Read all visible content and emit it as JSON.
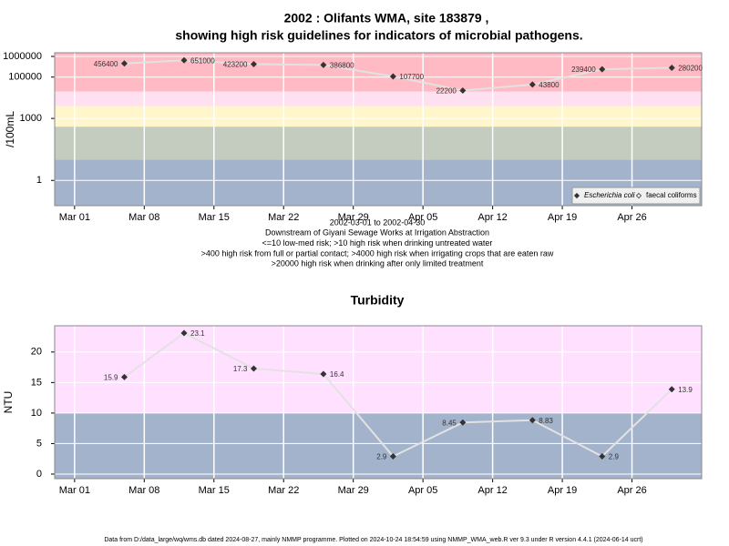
{
  "chart_data": [
    {
      "type": "line",
      "title": [
        "2002 : Olifants WMA, site 183879 ,",
        "showing high risk guidelines for indicators of microbial pathogens."
      ],
      "ylabel": "/100mL",
      "log_scale": true,
      "ylim": [
        0.06,
        1500000
      ],
      "yticks": [
        1,
        1000,
        100000,
        1000000
      ],
      "xlim": [
        "2002-02-27",
        "2002-05-03"
      ],
      "xticks": [
        {
          "value": "2002-03-01",
          "label": "Mar 01"
        },
        {
          "value": "2002-03-08",
          "label": "Mar 08"
        },
        {
          "value": "2002-03-15",
          "label": "Mar 15"
        },
        {
          "value": "2002-03-22",
          "label": "Mar 22"
        },
        {
          "value": "2002-03-29",
          "label": "Mar 29"
        },
        {
          "value": "2002-04-05",
          "label": "Apr 05"
        },
        {
          "value": "2002-04-12",
          "label": "Apr 12"
        },
        {
          "value": "2002-04-19",
          "label": "Apr 19"
        },
        {
          "value": "2002-04-26",
          "label": "Apr 26"
        }
      ],
      "band_breaks": [
        10,
        400,
        4000,
        20000
      ],
      "band_colors": [
        "#a3b3cb",
        "#c3ccbf",
        "#fff6cc",
        "#ffe0f0",
        "#ffbac4"
      ],
      "grid": true,
      "legend": "bottom-right",
      "x": [
        "2002-03-06",
        "2002-03-12",
        "2002-03-19",
        "2002-03-26",
        "2002-04-02",
        "2002-04-09",
        "2002-04-16",
        "2002-04-23",
        "2002-04-30"
      ],
      "series": [
        {
          "name": "Escherichia coli",
          "color": "#333333",
          "values": [
            456400,
            651000,
            423200,
            386800,
            107700,
            22200,
            43800,
            239400,
            280200
          ]
        },
        {
          "name": "faecal coliforms",
          "color": "#333333",
          "values": [
            null,
            null,
            null,
            null,
            null,
            null,
            null,
            null,
            null
          ]
        }
      ],
      "notes": [
        "2002-03-01 to 2002-04-30",
        "Downstream of Giyani Sewage Works at Irrigation Abstraction",
        "<=10 low-med risk; >10 high risk when drinking untreated water",
        ">400 high risk from full or partial contact; >4000 high risk when irrigating crops that are eaten raw",
        ">20000 high risk when drinking after only limited treatment"
      ]
    },
    {
      "type": "line",
      "title": [
        "Turbidity"
      ],
      "ylabel": "NTU",
      "log_scale": false,
      "ylim": [
        -0.75,
        24.3
      ],
      "yticks": [
        0,
        5,
        10,
        15,
        20
      ],
      "xlim": [
        "2002-02-27",
        "2002-05-03"
      ],
      "xticks": [
        {
          "value": "2002-03-01",
          "label": "Mar 01"
        },
        {
          "value": "2002-03-08",
          "label": "Mar 08"
        },
        {
          "value": "2002-03-15",
          "label": "Mar 15"
        },
        {
          "value": "2002-03-22",
          "label": "Mar 22"
        },
        {
          "value": "2002-03-29",
          "label": "Mar 29"
        },
        {
          "value": "2002-04-05",
          "label": "Apr 05"
        },
        {
          "value": "2002-04-12",
          "label": "Apr 12"
        },
        {
          "value": "2002-04-19",
          "label": "Apr 19"
        },
        {
          "value": "2002-04-26",
          "label": "Apr 26"
        }
      ],
      "band_breaks": [
        10
      ],
      "band_colors": [
        "#a3b3cb",
        "#ffe0ff"
      ],
      "grid": true,
      "x": [
        "2002-03-06",
        "2002-03-12",
        "2002-03-19",
        "2002-03-26",
        "2002-04-02",
        "2002-04-09",
        "2002-04-16",
        "2002-04-23",
        "2002-04-30"
      ],
      "series": [
        {
          "name": "Turbidity",
          "color": "#333333",
          "values": [
            15.9,
            23.1,
            17.3,
            16.4,
            2.9,
            8.45,
            8.83,
            2.9,
            13.9
          ]
        }
      ]
    }
  ],
  "footer": "Data from D:/data_large/wq/wms.db dated 2024-08-27, mainly NMMP programme. Plotted on 2024-10-24 18:54:59 using NMMP_WMA_web.R ver 9.3 under R version 4.4.1 (2024-06-14 ucrt)"
}
